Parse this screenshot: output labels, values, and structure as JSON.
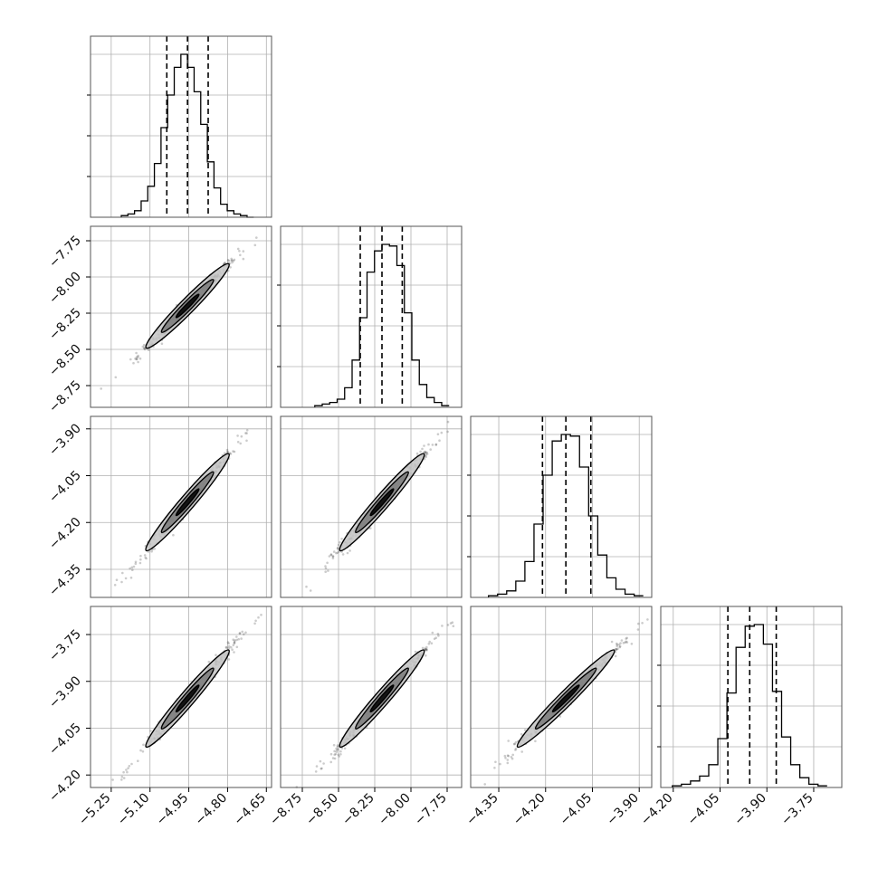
{
  "colors": {
    "line": "#000000",
    "grid": "#b0b0b0",
    "frame": "#555555",
    "scatter": "#333333",
    "contour_fill_dark": "#000000",
    "contour_fill_mid": "#7a7a7a",
    "contour_fill_light": "#c4c4c4"
  },
  "chart_data": {
    "type": "corner",
    "grid": true,
    "parameters": [
      {
        "median": -4.955,
        "q16": -5.035,
        "q84": -4.875,
        "axis_range": [
          -5.33,
          -4.63
        ],
        "ticks": [
          -5.25,
          -5.1,
          -4.95,
          -4.8,
          -4.65
        ],
        "tick_labels": [
          "−5.25",
          "−5.10",
          "−4.95",
          "−4.80",
          "−4.65"
        ],
        "histogram": [
          1,
          2,
          4,
          10,
          19,
          33,
          55,
          75,
          92,
          100,
          92,
          77,
          57,
          34,
          18,
          8,
          4,
          2,
          1,
          0
        ]
      },
      {
        "median": -8.2,
        "q16": -8.35,
        "q84": -8.06,
        "axis_range": [
          -8.9,
          -7.65
        ],
        "ticks": [
          -8.75,
          -8.5,
          -8.25,
          -8.0,
          -7.75
        ],
        "tick_labels": [
          "−8.75",
          "−8.50",
          "−8.25",
          "−8.00",
          "−7.75"
        ],
        "histogram": [
          1,
          2,
          3,
          5,
          12,
          29,
          55,
          83,
          96,
          100,
          99,
          87,
          58,
          29,
          14,
          6,
          3,
          1
        ]
      },
      {
        "median": -4.135,
        "q16": -4.21,
        "q84": -4.055,
        "axis_range": [
          -4.44,
          -3.86
        ],
        "ticks": [
          -4.35,
          -4.2,
          -4.05,
          -3.9
        ],
        "tick_labels": [
          "−4.35",
          "−4.20",
          "−4.05",
          "−3.90"
        ],
        "histogram": [
          1,
          2,
          4,
          10,
          22,
          45,
          75,
          96,
          100,
          99,
          80,
          50,
          26,
          12,
          5,
          2,
          1
        ]
      },
      {
        "median": -3.955,
        "q16": -4.025,
        "q84": -3.87,
        "axis_range": [
          -4.24,
          -3.66
        ],
        "ticks": [
          -4.2,
          -4.05,
          -3.9,
          -3.75
        ],
        "tick_labels": [
          "−4.20",
          "−4.05",
          "−3.90",
          "−3.75"
        ],
        "histogram": [
          1,
          2,
          4,
          7,
          14,
          30,
          58,
          86,
          99,
          100,
          88,
          59,
          31,
          14,
          6,
          2,
          1
        ]
      }
    ],
    "correlation": 0.99
  }
}
